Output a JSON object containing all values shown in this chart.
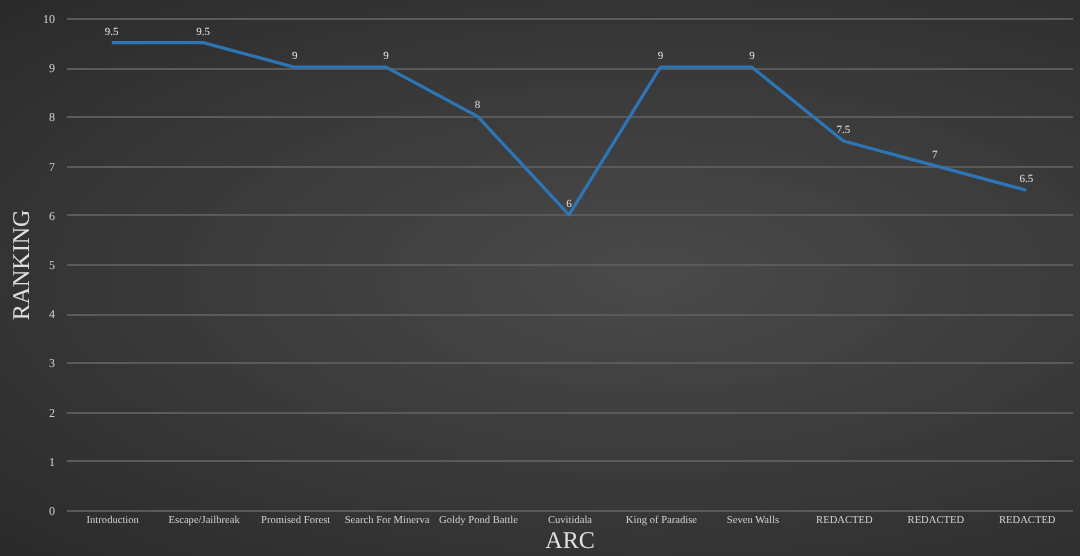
{
  "chart_data": {
    "type": "line",
    "xlabel": "ARC",
    "ylabel": "RANKING",
    "categories": [
      "Introduction",
      "Escape/Jailbreak",
      "Promised Forest",
      "Search For Minerva",
      "Goldy Pond Battle",
      "Cuvitidala",
      "King of Paradise",
      "Seven Walls",
      "REDACTED",
      "REDACTED",
      "REDACTED"
    ],
    "series": [
      {
        "color": "#2e75b6",
        "values": [
          9.5,
          9.5,
          9,
          9,
          8,
          6,
          9,
          9,
          7.5,
          7,
          6.5
        ]
      }
    ],
    "ylim": [
      0,
      10
    ],
    "yticks": [
      0,
      1,
      2,
      3,
      4,
      5,
      6,
      7,
      8,
      9,
      10
    ],
    "grid": "y",
    "data_labels": true,
    "legend": false,
    "marker": "none",
    "line_style": "solid"
  }
}
